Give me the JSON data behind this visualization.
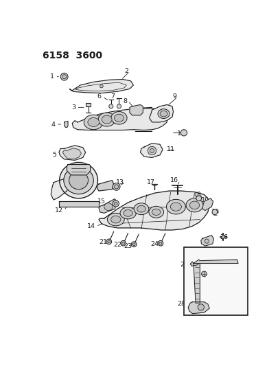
{
  "title": "6158  3600",
  "bg_color": "#ffffff",
  "line_color": "#1a1a1a",
  "label_color": "#1a1a1a",
  "label_fontsize": 6.8,
  "figsize": [
    4.08,
    5.33
  ],
  "dpi": 100,
  "parts_fill": "#e8e8e8",
  "parts_fill2": "#d0d0d0",
  "parts_fill3": "#c0c0c0"
}
